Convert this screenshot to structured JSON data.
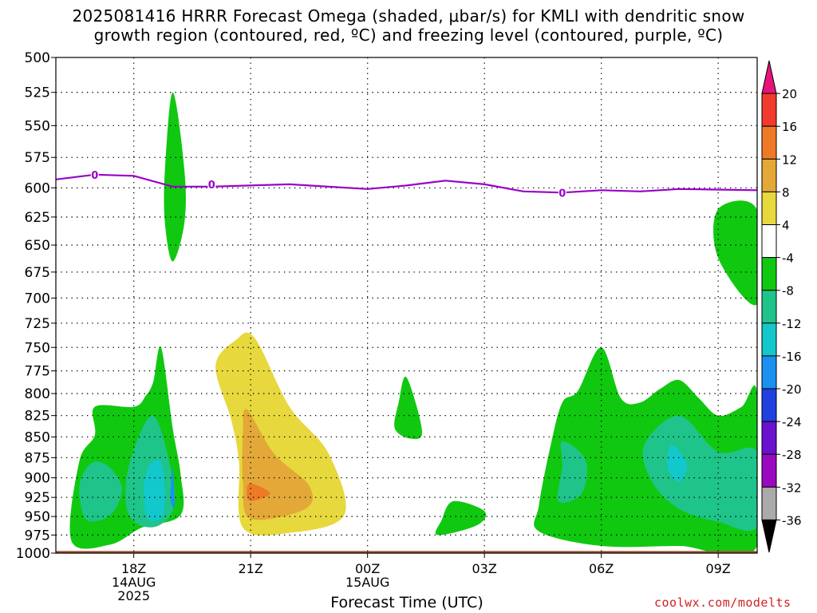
{
  "title_line1": "2025081416 HRRR Forecast Omega (shaded, μbar/s) for KMLI with dendritic snow",
  "title_line2": "growth region (contoured, red, ºC) and freezing level (contoured, purple, ºC)",
  "xlabel": "Forecast Time (UTC)",
  "credit": "coolwx.com/modelts",
  "chart_data": {
    "type": "heatmap",
    "title": "2025081416 HRRR Forecast Omega (shaded, μbar/s) for KMLI with dendritic snow growth region (contoured, red, ºC) and freezing level (contoured, purple, ºC)",
    "xlabel": "Forecast Time (UTC)",
    "ylabel": "",
    "x_range_hours_from_18Z": [
      -2,
      16
    ],
    "y_range_hPa": [
      1000,
      500
    ],
    "y_log_pressure_axis": true,
    "y_ticks": [
      500,
      525,
      550,
      575,
      600,
      625,
      650,
      675,
      700,
      725,
      750,
      775,
      800,
      825,
      850,
      875,
      900,
      925,
      950,
      975,
      1000
    ],
    "x_ticks": [
      {
        "hour": 0,
        "lines": [
          "18Z",
          "14AUG",
          "2025"
        ]
      },
      {
        "hour": 3,
        "lines": [
          "21Z"
        ]
      },
      {
        "hour": 6,
        "lines": [
          "00Z",
          "15AUG"
        ]
      },
      {
        "hour": 9,
        "lines": [
          "03Z"
        ]
      },
      {
        "hour": 12,
        "lines": [
          "06Z"
        ]
      },
      {
        "hour": 15,
        "lines": [
          "09Z"
        ]
      }
    ],
    "grid": true,
    "colorbar": {
      "labels": [
        "20",
        "16",
        "12",
        "8",
        "4",
        "-4",
        "-8",
        "-12",
        "-16",
        "-20",
        "-24",
        "-28",
        "-32",
        "-36"
      ],
      "colors": [
        "#e8137a",
        "#f23a2e",
        "#ee7a28",
        "#e3a838",
        "#e7d83d",
        "#ffffff",
        "#10c810",
        "#1fc48a",
        "#12c8cc",
        "#1a90f0",
        "#2040e0",
        "#6a10d0",
        "#9a08c0",
        "#aaaaaa",
        "#000000"
      ],
      "placement": "right"
    },
    "freezing_level": {
      "label": "0",
      "color": "#9a00c8",
      "points": [
        [
          -2,
          593
        ],
        [
          -1,
          589
        ],
        [
          0,
          590
        ],
        [
          1,
          599
        ],
        [
          2,
          599
        ],
        [
          4,
          597
        ],
        [
          6,
          601
        ],
        [
          7,
          598
        ],
        [
          8,
          594
        ],
        [
          9,
          597
        ],
        [
          10,
          603
        ],
        [
          11,
          604
        ],
        [
          12,
          602
        ],
        [
          13,
          603
        ],
        [
          14,
          601
        ],
        [
          16,
          602
        ]
      ],
      "label_positions": [
        [
          -1,
          589
        ],
        [
          2,
          597
        ],
        [
          11,
          604
        ]
      ]
    },
    "omega_regions": [
      {
        "name": "green-left-lower",
        "level": "-8 to -4",
        "color": "#10c810",
        "points": [
          [
            -1,
            815
          ],
          [
            0,
            815
          ],
          [
            0.3,
            803
          ],
          [
            0.5,
            787
          ],
          [
            0.7,
            750
          ],
          [
            1.0,
            840
          ],
          [
            1.2,
            895
          ],
          [
            1.2,
            948
          ],
          [
            0.2,
            965
          ],
          [
            -0.6,
            988
          ],
          [
            -1.6,
            983
          ],
          [
            -1.4,
            880
          ],
          [
            -1.0,
            848
          ]
        ]
      },
      {
        "name": "teal-left-a",
        "level": "-12 to -8",
        "color": "#1fc48a",
        "points": [
          [
            -1.0,
            880
          ],
          [
            -0.6,
            888
          ],
          [
            -0.3,
            915
          ],
          [
            -0.6,
            948
          ],
          [
            -1.2,
            955
          ],
          [
            -1.4,
            920
          ],
          [
            -1.3,
            895
          ]
        ]
      },
      {
        "name": "teal-left-b",
        "level": "-12 to -8",
        "color": "#1fc48a",
        "points": [
          [
            0.5,
            825
          ],
          [
            1.0,
            900
          ],
          [
            1.0,
            942
          ],
          [
            0.6,
            963
          ],
          [
            0.1,
            960
          ],
          [
            -0.2,
            935
          ],
          [
            -0.1,
            880
          ]
        ]
      },
      {
        "name": "cyan-left",
        "level": "-16 to -12",
        "color": "#12c8cc",
        "points": [
          [
            0.7,
            880
          ],
          [
            0.8,
            925
          ],
          [
            0.7,
            952
          ],
          [
            0.35,
            952
          ],
          [
            0.25,
            915
          ],
          [
            0.4,
            885
          ]
        ]
      },
      {
        "name": "blue-left",
        "level": "-20 to -16",
        "color": "#1a90f0",
        "points": [
          [
            1.0,
            890
          ],
          [
            1.05,
            935
          ],
          [
            0.95,
            930
          ],
          [
            0.97,
            895
          ]
        ]
      },
      {
        "name": "green-upper-tall",
        "level": "-8 to -4",
        "color": "#10c810",
        "points": [
          [
            1.0,
            525
          ],
          [
            1.3,
            585
          ],
          [
            1.3,
            630
          ],
          [
            1.0,
            665
          ],
          [
            0.8,
            630
          ],
          [
            0.8,
            585
          ]
        ]
      },
      {
        "name": "yellow-center",
        "level": "4 to 8",
        "color": "#e7d83d",
        "points": [
          [
            3.1,
            740
          ],
          [
            4.0,
            815
          ],
          [
            5.0,
            870
          ],
          [
            5.4,
            948
          ],
          [
            4.0,
            972
          ],
          [
            2.8,
            965
          ],
          [
            2.7,
            880
          ],
          [
            2.5,
            830
          ],
          [
            2.1,
            770
          ],
          [
            2.6,
            743
          ]
        ]
      },
      {
        "name": "orange-center",
        "level": "8 to 12",
        "color": "#e3a838",
        "points": [
          [
            2.9,
            818
          ],
          [
            3.6,
            870
          ],
          [
            4.5,
            910
          ],
          [
            4.4,
            940
          ],
          [
            3.0,
            953
          ],
          [
            2.8,
            905
          ],
          [
            2.8,
            848
          ]
        ]
      },
      {
        "name": "dark-orange-center",
        "level": "12 to 16",
        "color": "#ee7a28",
        "points": [
          [
            3.0,
            907
          ],
          [
            3.5,
            920
          ],
          [
            3.0,
            930
          ],
          [
            2.9,
            918
          ]
        ]
      },
      {
        "name": "green-small-1",
        "level": "-8 to -4",
        "color": "#10c810",
        "points": [
          [
            7.0,
            782
          ],
          [
            7.4,
            843
          ],
          [
            7.1,
            852
          ],
          [
            6.7,
            840
          ],
          [
            6.8,
            810
          ]
        ]
      },
      {
        "name": "green-small-2",
        "level": "-8 to -4",
        "color": "#10c810",
        "points": [
          [
            8.2,
            930
          ],
          [
            9.0,
            943
          ],
          [
            8.8,
            962
          ],
          [
            7.8,
            975
          ],
          [
            7.9,
            955
          ]
        ]
      },
      {
        "name": "green-right-lower",
        "level": "-8 to -4",
        "color": "#10c810",
        "points": [
          [
            12.0,
            750
          ],
          [
            12.5,
            805
          ],
          [
            13.0,
            810
          ],
          [
            13.5,
            795
          ],
          [
            14.0,
            785
          ],
          [
            14.5,
            805
          ],
          [
            15.0,
            825
          ],
          [
            15.6,
            815
          ],
          [
            16.0,
            800
          ],
          [
            16.0,
            990
          ],
          [
            14.0,
            990
          ],
          [
            12.0,
            990
          ],
          [
            10.4,
            970
          ],
          [
            10.4,
            935
          ],
          [
            10.7,
            860
          ],
          [
            11.0,
            810
          ],
          [
            11.4,
            797
          ]
        ]
      },
      {
        "name": "teal-right-a",
        "level": "-12 to -8",
        "color": "#1fc48a",
        "points": [
          [
            11.0,
            855
          ],
          [
            11.6,
            878
          ],
          [
            11.5,
            920
          ],
          [
            10.9,
            930
          ],
          [
            11.0,
            885
          ]
        ]
      },
      {
        "name": "teal-right-b",
        "level": "-12 to -8",
        "color": "#1fc48a",
        "points": [
          [
            14.0,
            825
          ],
          [
            15.0,
            868
          ],
          [
            16.0,
            868
          ],
          [
            16.0,
            963
          ],
          [
            15.0,
            957
          ],
          [
            14.0,
            940
          ],
          [
            13.3,
            905
          ],
          [
            13.1,
            860
          ]
        ]
      },
      {
        "name": "cyan-right",
        "level": "-16 to -12",
        "color": "#12c8cc",
        "points": [
          [
            13.8,
            860
          ],
          [
            14.2,
            882
          ],
          [
            14.0,
            905
          ],
          [
            13.7,
            888
          ]
        ]
      },
      {
        "name": "green-right-upper",
        "level": "-8 to -4",
        "color": "#10c810",
        "points": [
          [
            15.0,
            618
          ],
          [
            16.0,
            619
          ],
          [
            16.0,
            706
          ],
          [
            15.0,
            662
          ]
        ]
      }
    ],
    "ground_band": {
      "color": "#a0522d",
      "top_hPa": 997
    }
  }
}
